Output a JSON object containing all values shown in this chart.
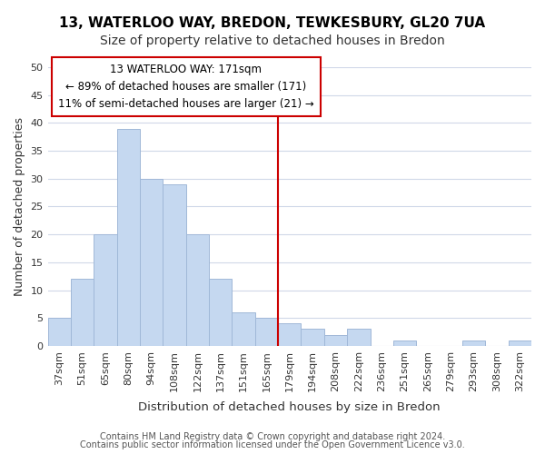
{
  "title": "13, WATERLOO WAY, BREDON, TEWKESBURY, GL20 7UA",
  "subtitle": "Size of property relative to detached houses in Bredon",
  "xlabel": "Distribution of detached houses by size in Bredon",
  "ylabel": "Number of detached properties",
  "bar_labels": [
    "37sqm",
    "51sqm",
    "65sqm",
    "80sqm",
    "94sqm",
    "108sqm",
    "122sqm",
    "137sqm",
    "151sqm",
    "165sqm",
    "179sqm",
    "194sqm",
    "208sqm",
    "222sqm",
    "236sqm",
    "251sqm",
    "265sqm",
    "279sqm",
    "293sqm",
    "308sqm",
    "322sqm"
  ],
  "bar_values": [
    5,
    12,
    20,
    39,
    30,
    29,
    20,
    12,
    6,
    5,
    4,
    3,
    2,
    3,
    0,
    1,
    0,
    0,
    1,
    0,
    1
  ],
  "bar_color": "#c5d8f0",
  "bar_edge_color": "#a0b8d8",
  "grid_color": "#d0d8e8",
  "background_color": "#ffffff",
  "annotation_line1": "13 WATERLOO WAY: 171sqm",
  "annotation_line2": "← 89% of detached houses are smaller (171)",
  "annotation_line3": "11% of semi-detached houses are larger (21) →",
  "annotation_box_edge_color": "#cc0000",
  "annotation_box_text_color": "#000000",
  "vline_color": "#cc0000",
  "ylim": [
    0,
    50
  ],
  "yticks": [
    0,
    5,
    10,
    15,
    20,
    25,
    30,
    35,
    40,
    45,
    50
  ],
  "footer_line1": "Contains HM Land Registry data © Crown copyright and database right 2024.",
  "footer_line2": "Contains public sector information licensed under the Open Government Licence v3.0.",
  "title_fontsize": 11,
  "subtitle_fontsize": 10,
  "xlabel_fontsize": 9.5,
  "ylabel_fontsize": 9,
  "tick_fontsize": 8,
  "annotation_fontsize": 8.5,
  "footer_fontsize": 7
}
